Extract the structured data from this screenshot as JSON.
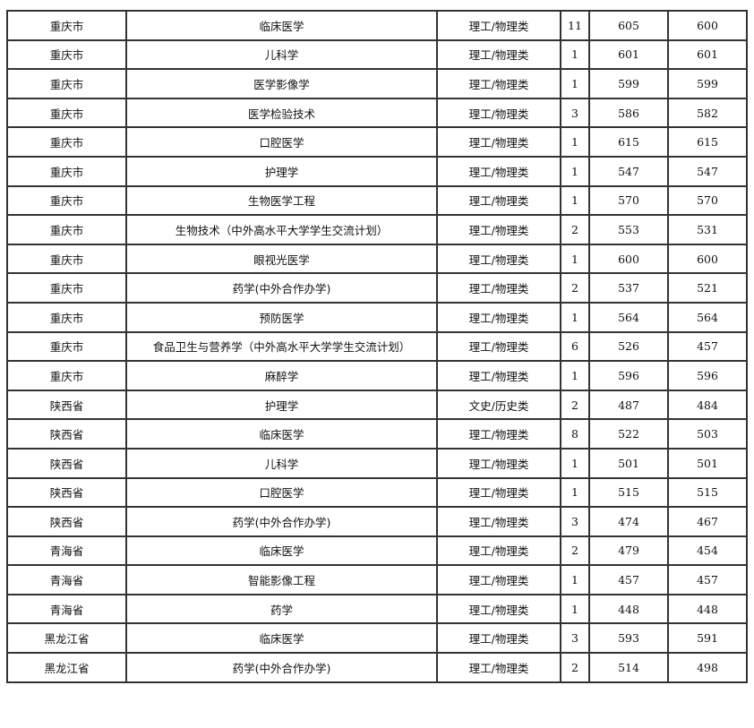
{
  "table": {
    "rows": [
      [
        "重庆市",
        "临床医学",
        "理工/物理类",
        "11",
        "605",
        "600"
      ],
      [
        "重庆市",
        "儿科学",
        "理工/物理类",
        "1",
        "601",
        "601"
      ],
      [
        "重庆市",
        "医学影像学",
        "理工/物理类",
        "1",
        "599",
        "599"
      ],
      [
        "重庆市",
        "医学检验技术",
        "理工/物理类",
        "3",
        "586",
        "582"
      ],
      [
        "重庆市",
        "口腔医学",
        "理工/物理类",
        "1",
        "615",
        "615"
      ],
      [
        "重庆市",
        "护理学",
        "理工/物理类",
        "1",
        "547",
        "547"
      ],
      [
        "重庆市",
        "生物医学工程",
        "理工/物理类",
        "1",
        "570",
        "570"
      ],
      [
        "重庆市",
        "生物技术（中外高水平大学学生交流计划）",
        "理工/物理类",
        "2",
        "553",
        "531"
      ],
      [
        "重庆市",
        "眼视光医学",
        "理工/物理类",
        "1",
        "600",
        "600"
      ],
      [
        "重庆市",
        "药学(中外合作办学)",
        "理工/物理类",
        "2",
        "537",
        "521"
      ],
      [
        "重庆市",
        "预防医学",
        "理工/物理类",
        "1",
        "564",
        "564"
      ],
      [
        "重庆市",
        "食品卫生与营养学（中外高水平大学学生交流计划）",
        "理工/物理类",
        "6",
        "526",
        "457"
      ],
      [
        "重庆市",
        "麻醉学",
        "理工/物理类",
        "1",
        "596",
        "596"
      ],
      [
        "陕西省",
        "护理学",
        "文史/历史类",
        "2",
        "487",
        "484"
      ],
      [
        "陕西省",
        "临床医学",
        "理工/物理类",
        "8",
        "522",
        "503"
      ],
      [
        "陕西省",
        "儿科学",
        "理工/物理类",
        "1",
        "501",
        "501"
      ],
      [
        "陕西省",
        "口腔医学",
        "理工/物理类",
        "1",
        "515",
        "515"
      ],
      [
        "陕西省",
        "药学(中外合作办学)",
        "理工/物理类",
        "3",
        "474",
        "467"
      ],
      [
        "青海省",
        "临床医学",
        "理工/物理类",
        "2",
        "479",
        "454"
      ],
      [
        "青海省",
        "智能影像工程",
        "理工/物理类",
        "1",
        "457",
        "457"
      ],
      [
        "青海省",
        "药学",
        "理工/物理类",
        "1",
        "448",
        "448"
      ],
      [
        "黑龙江省",
        "临床医学",
        "理工/物理类",
        "3",
        "593",
        "591"
      ],
      [
        "黑龙江省",
        "药学(中外合作办学)",
        "理工/物理类",
        "2",
        "514",
        "498"
      ]
    ]
  }
}
